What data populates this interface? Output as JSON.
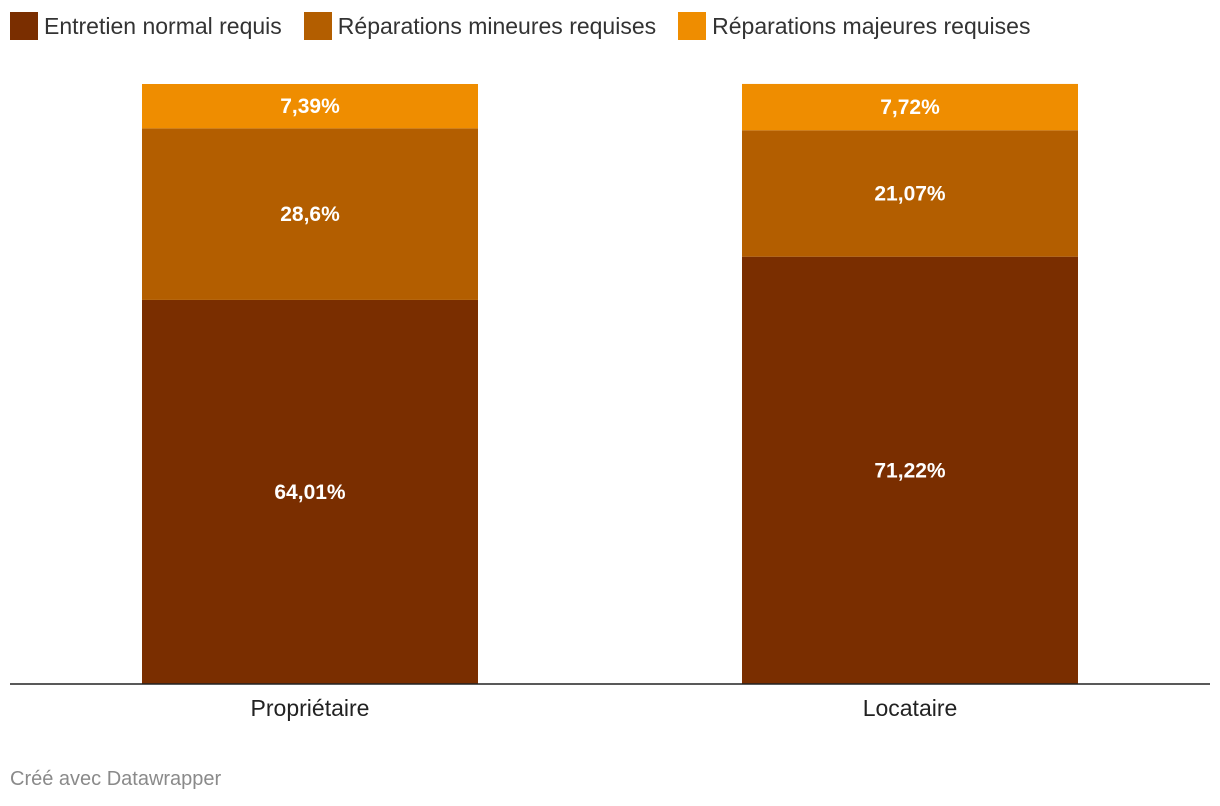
{
  "chart_data": {
    "type": "bar",
    "stacked": true,
    "categories": [
      "Propriétaire",
      "Locataire"
    ],
    "series": [
      {
        "name": "Entretien normal requis",
        "color": "#7a2e00",
        "values": [
          64.01,
          71.22
        ],
        "labels": [
          "64,01%",
          "71,22%"
        ]
      },
      {
        "name": "Réparations mineures requises",
        "color": "#b35e00",
        "values": [
          28.6,
          21.07
        ],
        "labels": [
          "28,6%",
          "21,07%"
        ]
      },
      {
        "name": "Réparations majeures requises",
        "color": "#ef8d00",
        "values": [
          7.39,
          7.72
        ],
        "labels": [
          "7,39%",
          "7,72%"
        ]
      }
    ],
    "ylim": [
      0,
      100
    ],
    "grid": false,
    "legend": "top-left"
  },
  "footer": {
    "credit": "Créé avec Datawrapper"
  }
}
